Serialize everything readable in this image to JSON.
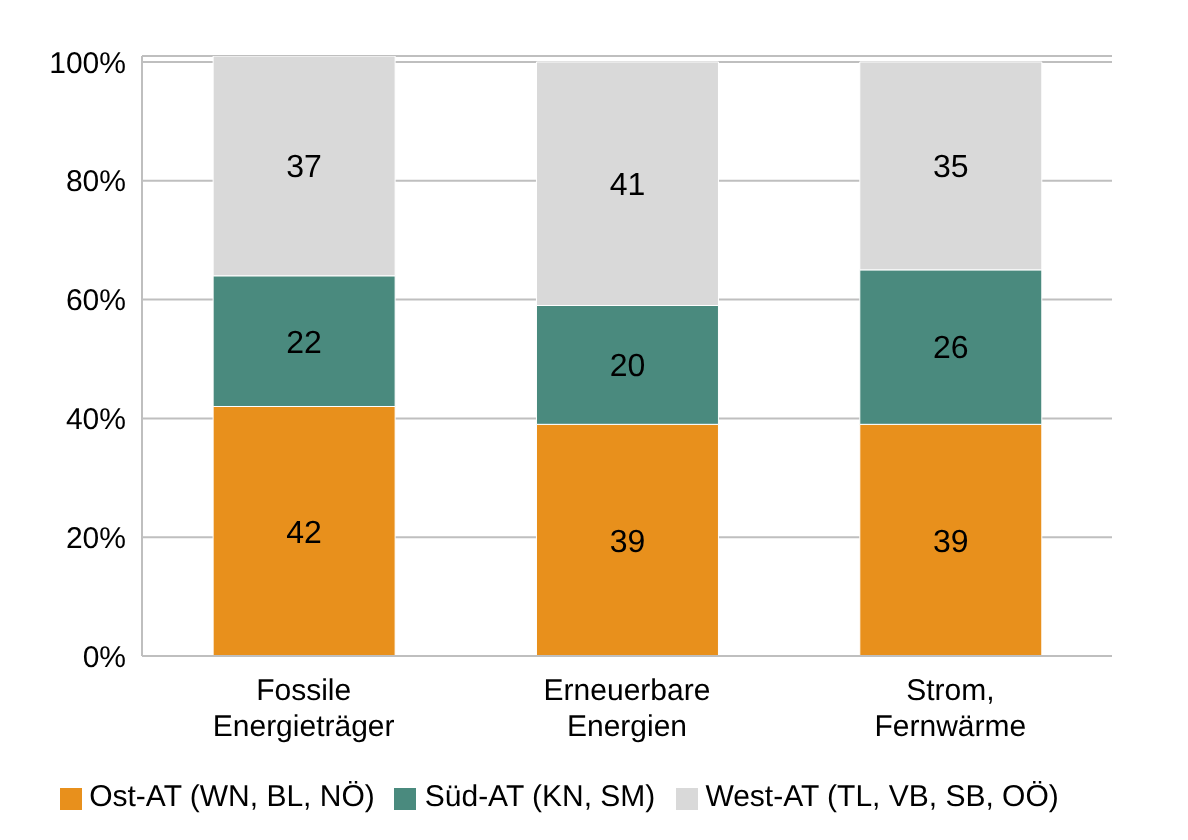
{
  "chart_data": {
    "type": "bar",
    "stacked": true,
    "categories": [
      "Fossile Energieträger",
      "Erneuerbare Energien",
      "Strom, Fernwärme"
    ],
    "series": [
      {
        "name": "Ost-AT (WN, BL, NÖ)",
        "color": "#e8901c",
        "values": [
          42,
          39,
          39
        ]
      },
      {
        "name": "Süd-AT (KN, SM)",
        "color": "#4a8a7e",
        "values": [
          22,
          20,
          26
        ]
      },
      {
        "name": "West-AT (TL, VB, SB, OÖ)",
        "color": "#d9d9d9",
        "values": [
          37,
          41,
          35
        ]
      }
    ],
    "data_labels": true,
    "ylim": [
      0,
      101
    ],
    "yticks": [
      {
        "value": 0,
        "label": "0%"
      },
      {
        "value": 20,
        "label": "20%"
      },
      {
        "value": 40,
        "label": "40%"
      },
      {
        "value": 60,
        "label": "60%"
      },
      {
        "value": 80,
        "label": "80%"
      },
      {
        "value": 100,
        "label": "100%"
      }
    ],
    "grid": "y",
    "legend": "bottom"
  }
}
